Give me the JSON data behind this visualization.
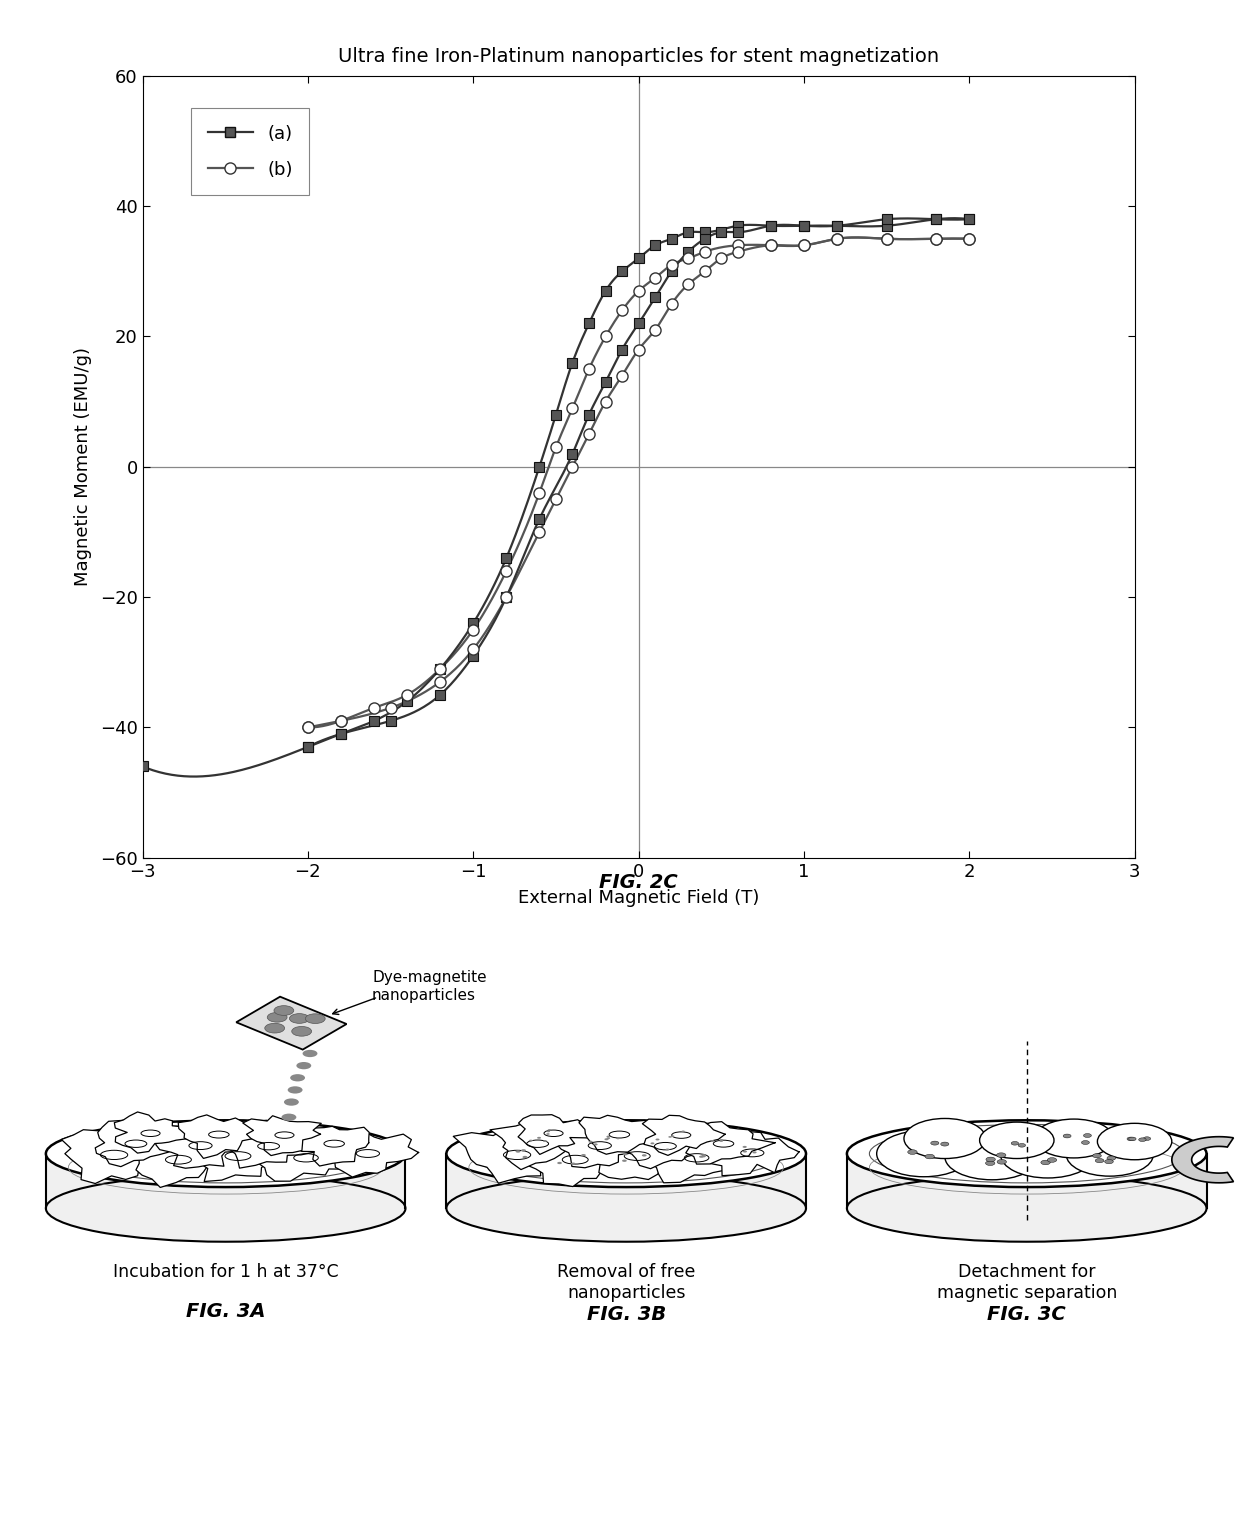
{
  "title": "Ultra fine Iron-Platinum nanoparticles for stent magnetization",
  "xlabel": "External Magnetic Field (T)",
  "ylabel": "Magnetic Moment (EMU/g)",
  "xlim": [
    -3,
    3
  ],
  "ylim": [
    -60,
    60
  ],
  "xticks": [
    -3,
    -2,
    -1,
    0,
    1,
    2,
    3
  ],
  "yticks": [
    -60,
    -40,
    -20,
    0,
    20,
    40,
    60
  ],
  "fig_caption": "FIG. 2C",
  "fig3a_label": "FIG. 3A",
  "fig3b_label": "FIG. 3B",
  "fig3c_label": "FIG. 3C",
  "legend_a": "(a)",
  "legend_b": "(b)",
  "text_3a": "Incubation for 1 h at 37°C",
  "text_3b": "Removal of free\nnanoparticles",
  "text_3c": "Detachment for\nmagnetic separation",
  "text_dye": "Dye-magnetite\nnanoparticles",
  "background_color": "#ffffff",
  "line_color_a": "#333333",
  "line_color_b": "#555555",
  "curve_a_upper_x": [
    -3.0,
    -2.0,
    -1.8,
    -1.6,
    -1.4,
    -1.2,
    -1.0,
    -0.8,
    -0.6,
    -0.5,
    -0.4,
    -0.3,
    -0.2,
    -0.1,
    0.0,
    0.1,
    0.2,
    0.3,
    0.4,
    0.6,
    0.8,
    1.0,
    1.2,
    1.5,
    1.8,
    2.0
  ],
  "curve_a_upper_y": [
    -46,
    -43,
    -41,
    -39,
    -36,
    -31,
    -24,
    -14,
    0,
    8,
    16,
    22,
    27,
    30,
    32,
    34,
    35,
    36,
    36,
    37,
    37,
    37,
    37,
    37,
    38,
    38
  ],
  "curve_a_lower_x": [
    -2.0,
    -1.8,
    -1.5,
    -1.2,
    -1.0,
    -0.8,
    -0.6,
    -0.4,
    -0.3,
    -0.2,
    -0.1,
    0.0,
    0.1,
    0.2,
    0.3,
    0.4,
    0.5,
    0.6,
    0.8,
    1.0,
    1.2,
    1.5,
    1.8,
    2.0
  ],
  "curve_a_lower_y": [
    -43,
    -41,
    -39,
    -35,
    -29,
    -20,
    -8,
    2,
    8,
    13,
    18,
    22,
    26,
    30,
    33,
    35,
    36,
    36,
    37,
    37,
    37,
    38,
    38,
    38
  ],
  "curve_b_upper_x": [
    -2.0,
    -1.8,
    -1.6,
    -1.4,
    -1.2,
    -1.0,
    -0.8,
    -0.6,
    -0.5,
    -0.4,
    -0.3,
    -0.2,
    -0.1,
    0.0,
    0.1,
    0.2,
    0.3,
    0.4,
    0.6,
    0.8,
    1.0,
    1.2,
    1.5,
    1.8,
    2.0
  ],
  "curve_b_upper_y": [
    -40,
    -39,
    -37,
    -35,
    -31,
    -25,
    -16,
    -4,
    3,
    9,
    15,
    20,
    24,
    27,
    29,
    31,
    32,
    33,
    34,
    34,
    34,
    35,
    35,
    35,
    35
  ],
  "curve_b_lower_x": [
    -2.0,
    -1.8,
    -1.5,
    -1.2,
    -1.0,
    -0.8,
    -0.6,
    -0.5,
    -0.4,
    -0.3,
    -0.2,
    -0.1,
    0.0,
    0.1,
    0.2,
    0.3,
    0.4,
    0.5,
    0.6,
    0.8,
    1.0,
    1.2,
    1.5,
    1.8,
    2.0
  ],
  "curve_b_lower_y": [
    -40,
    -39,
    -37,
    -33,
    -28,
    -20,
    -10,
    -5,
    0,
    5,
    10,
    14,
    18,
    21,
    25,
    28,
    30,
    32,
    33,
    34,
    34,
    35,
    35,
    35,
    35
  ]
}
